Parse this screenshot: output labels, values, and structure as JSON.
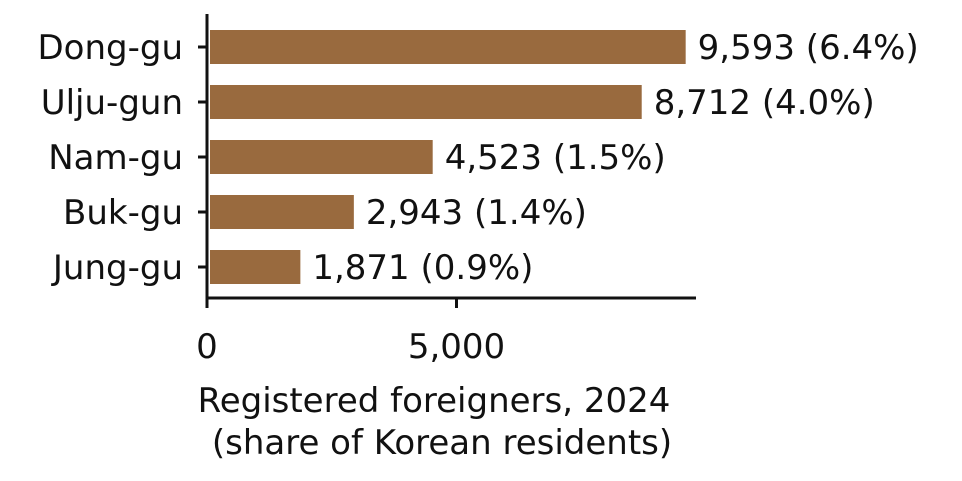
{
  "chart_data": {
    "type": "bar",
    "orientation": "horizontal",
    "categories": [
      "Dong-gu",
      "Ulju-gun",
      "Nam-gu",
      "Buk-gu",
      "Jung-gu"
    ],
    "values": [
      9593,
      8712,
      4523,
      2943,
      1871
    ],
    "value_labels": [
      "9,593 (6.4%)",
      "8,712 (4.0%)",
      "4,523 (1.5%)",
      "2,943 (1.4%)",
      "1,871 (0.9%)"
    ],
    "xlabel_lines": [
      "Registered foreigners, 2024",
      "(share of Korean residents)"
    ],
    "ylabel": "",
    "title": "",
    "xlim": [
      0,
      9800
    ],
    "xticks": [
      0,
      5000
    ],
    "xtick_labels": [
      "0",
      "5,000"
    ],
    "grid": false,
    "legend": "none",
    "bar_color": "#996a3e"
  }
}
